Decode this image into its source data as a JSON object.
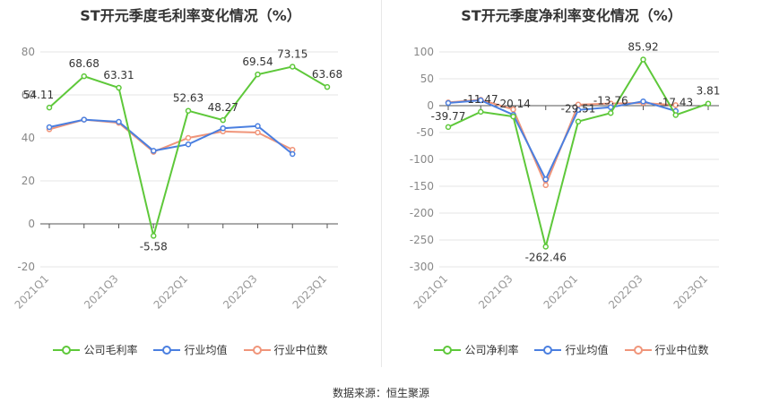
{
  "chart_data": [
    {
      "type": "line",
      "title": "ST开元季度毛利率变化情况（%）",
      "categories": [
        "2021Q1",
        "2021Q2",
        "2021Q3",
        "2021Q4",
        "2022Q1",
        "2022Q2",
        "2022Q3",
        "2022Q4",
        "2023Q1"
      ],
      "tick_labels": [
        "2021Q1",
        "2021Q3",
        "2022Q1",
        "2022Q3",
        "2023Q1"
      ],
      "ylim": [
        -20,
        80
      ],
      "yticks": [
        -20,
        0,
        20,
        40,
        60,
        80
      ],
      "grid": true,
      "legend_position": "bottom",
      "series": [
        {
          "name": "公司毛利率",
          "color": "#5ec83a",
          "values": [
            54.11,
            68.68,
            63.31,
            -5.58,
            52.63,
            48.27,
            69.54,
            73.15,
            63.68
          ],
          "labels": [
            "54.11",
            "68.68",
            "63.31",
            "-5.58",
            "52.63",
            "48.27",
            "69.54",
            "73.15",
            "63.68"
          ]
        },
        {
          "name": "行业均值",
          "color": "#4a7fe0",
          "values": [
            45,
            48.5,
            47.5,
            34,
            37,
            44.5,
            45.5,
            32.5,
            null
          ]
        },
        {
          "name": "行业中位数",
          "color": "#f0957a",
          "values": [
            44,
            48.5,
            47,
            33.5,
            40,
            43,
            42.5,
            34.5,
            null
          ]
        }
      ]
    },
    {
      "type": "line",
      "title": "ST开元季度净利率变化情况（%）",
      "categories": [
        "2021Q1",
        "2021Q2",
        "2021Q3",
        "2021Q4",
        "2022Q1",
        "2022Q2",
        "2022Q3",
        "2022Q4",
        "2023Q1"
      ],
      "tick_labels": [
        "2021Q1",
        "2021Q3",
        "2022Q1",
        "2022Q3",
        "2023Q1"
      ],
      "ylim": [
        -300,
        100
      ],
      "yticks": [
        -300,
        -250,
        -200,
        -150,
        -100,
        -50,
        0,
        50,
        100
      ],
      "grid": true,
      "legend_position": "bottom",
      "series": [
        {
          "name": "公司净利率",
          "color": "#5ec83a",
          "values": [
            -39.77,
            -11.47,
            -20.14,
            -262.46,
            -29.51,
            -13.76,
            85.92,
            -17.43,
            3.81
          ],
          "labels": [
            "-39.77",
            "-11.47",
            "-20.14",
            "-262.46",
            "-29.51",
            "-13.76",
            "85.92",
            "-17.43",
            "3.81"
          ]
        },
        {
          "name": "行业均值",
          "color": "#4a7fe0",
          "values": [
            5,
            10,
            -17,
            -137,
            -8,
            -3,
            8,
            -10,
            null
          ]
        },
        {
          "name": "行业中位数",
          "color": "#f0957a",
          "values": [
            6,
            11,
            -7,
            -148,
            2,
            4,
            5,
            1,
            null
          ]
        }
      ]
    }
  ],
  "footer": {
    "source": "数据来源：恒生聚源"
  }
}
